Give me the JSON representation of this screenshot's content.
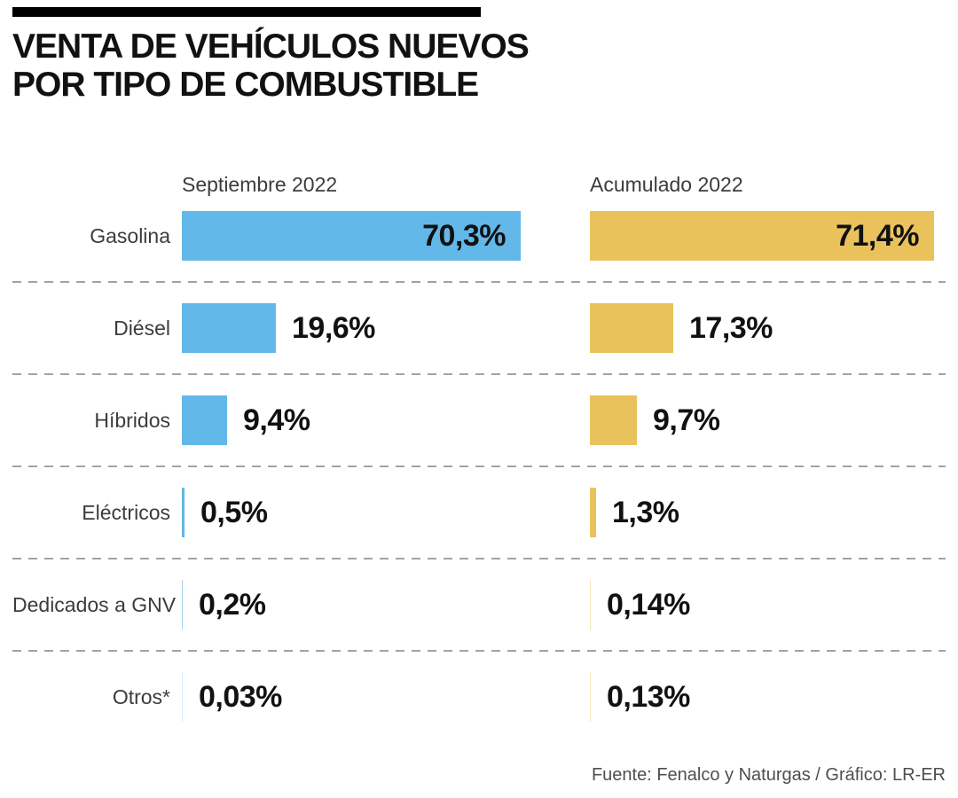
{
  "title": {
    "line1": "VENTA DE VEHÍCULOS NUEVOS",
    "line2": "POR TIPO DE COMBUSTIBLE"
  },
  "source_credit": "Fuente: Fenalco y Naturgas / Gráfico: LR-ER",
  "colors": {
    "septiembre_bar": "#62B8E8",
    "acumulado_bar": "#EAC25C",
    "title_text": "#111111",
    "label_text": "#3c3c3b",
    "value_text": "#111111",
    "separator": "#a3a3a3",
    "source_text": "#4f4f4f",
    "top_rule": "#000000"
  },
  "chart_data": {
    "type": "bar",
    "orientation": "horizontal",
    "title": "VENTA DE VEHÍCULOS NUEVOS POR TIPO DE COMBUSTIBLE",
    "categories": [
      "Gasolina",
      "Diésel",
      "Híbridos",
      "Eléctricos",
      "Dedicados a GNV",
      "Otros*"
    ],
    "series": [
      {
        "name": "Septiembre 2022",
        "color": "#62B8E8",
        "values": [
          70.3,
          19.6,
          9.4,
          0.5,
          0.2,
          0.03
        ],
        "labels": [
          "70,3%",
          "19,6%",
          "9,4%",
          "0,5%",
          "0,2%",
          "0,03%"
        ]
      },
      {
        "name": "Acumulado 2022",
        "color": "#EAC25C",
        "values": [
          71.4,
          17.3,
          9.7,
          1.3,
          0.14,
          0.13
        ],
        "labels": [
          "71,4%",
          "17,3%",
          "9,7%",
          "1,3%",
          "0,14%",
          "0,13%"
        ]
      }
    ],
    "xlim": [
      0,
      100
    ],
    "value_suffix": "%",
    "decimal_separator": ",",
    "grid": false,
    "legend_position": "column-headers",
    "value_labels": "shown",
    "separators": "dashed-between-categories"
  }
}
